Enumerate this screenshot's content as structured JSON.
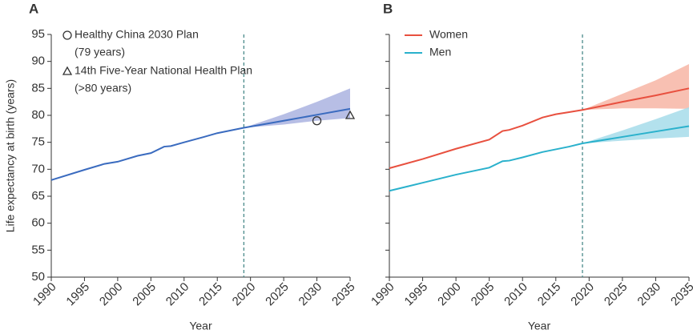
{
  "chart_data": [
    {
      "type": "line",
      "panel_label": "A",
      "x_label": "Year",
      "y_label": "Life expectancy at birth (years)",
      "x": [
        1990,
        1995,
        1998,
        2000,
        2003,
        2005,
        2007,
        2008,
        2010,
        2013,
        2015,
        2017,
        2019,
        2025,
        2030,
        2035
      ],
      "xlim": [
        1990,
        2035
      ],
      "xticks": [
        1990,
        1995,
        2000,
        2005,
        2010,
        2015,
        2020,
        2025,
        2030,
        2035
      ],
      "ylim": [
        50,
        95
      ],
      "yticks": [
        50,
        55,
        60,
        65,
        70,
        75,
        80,
        85,
        90,
        95
      ],
      "vline_x": 2019,
      "vline_color": "#4a8a8a",
      "series": [
        {
          "color": "#3a6bbf",
          "band_color": "#aab3e0",
          "values": [
            68.0,
            69.9,
            71.0,
            71.4,
            72.5,
            73.0,
            74.2,
            74.3,
            75.0,
            76.0,
            76.7,
            77.2,
            77.7,
            79.0,
            80.1,
            81.2
          ],
          "band_lower": [
            null,
            null,
            null,
            null,
            null,
            null,
            null,
            null,
            null,
            null,
            null,
            null,
            77.7,
            78.3,
            79.0,
            79.5
          ],
          "band_upper": [
            null,
            null,
            null,
            null,
            null,
            null,
            null,
            null,
            null,
            null,
            null,
            null,
            77.7,
            80.2,
            82.5,
            85.0
          ]
        }
      ],
      "markers": [
        {
          "name": "Healthy China 2030 Plan",
          "note": "(79 years)",
          "shape": "circle",
          "x": 2030,
          "y": 79
        },
        {
          "name": "14th Five-Year National Health Plan",
          "note": "(>80 years)",
          "shape": "triangle",
          "x": 2035,
          "y": 80
        }
      ]
    },
    {
      "type": "line",
      "panel_label": "B",
      "x_label": "Year",
      "x": [
        1990,
        1995,
        2000,
        2005,
        2007,
        2008,
        2010,
        2013,
        2015,
        2017,
        2019,
        2025,
        2030,
        2035
      ],
      "xlim": [
        1990,
        2035
      ],
      "xticks": [
        1990,
        1995,
        2000,
        2005,
        2010,
        2015,
        2020,
        2025,
        2030,
        2035
      ],
      "ylim": [
        50,
        95
      ],
      "yticks": [
        50,
        55,
        60,
        65,
        70,
        75,
        80,
        85,
        90,
        95
      ],
      "vline_x": 2019,
      "vline_color": "#4a8a8a",
      "series": [
        {
          "name": "Women",
          "color": "#e8503f",
          "band_color": "#f7b5a5",
          "values": [
            70.2,
            71.9,
            73.8,
            75.5,
            77.1,
            77.3,
            78.1,
            79.6,
            80.2,
            80.6,
            81.0,
            82.5,
            83.7,
            85.0
          ],
          "band_lower": [
            null,
            null,
            null,
            null,
            null,
            null,
            null,
            null,
            null,
            null,
            81.0,
            81.3,
            81.3,
            81.2
          ],
          "band_upper": [
            null,
            null,
            null,
            null,
            null,
            null,
            null,
            null,
            null,
            null,
            81.0,
            84.0,
            86.5,
            89.5
          ]
        },
        {
          "name": "Men",
          "color": "#2ab1cc",
          "band_color": "#a6dcea",
          "values": [
            66.0,
            67.5,
            69.0,
            70.3,
            71.5,
            71.6,
            72.2,
            73.2,
            73.7,
            74.2,
            74.8,
            76.0,
            77.0,
            78.0
          ],
          "band_lower": [
            null,
            null,
            null,
            null,
            null,
            null,
            null,
            null,
            null,
            null,
            74.8,
            75.3,
            75.7,
            76.0
          ],
          "band_upper": [
            null,
            null,
            null,
            null,
            null,
            null,
            null,
            null,
            null,
            null,
            74.8,
            77.2,
            79.3,
            81.5
          ]
        }
      ]
    }
  ]
}
